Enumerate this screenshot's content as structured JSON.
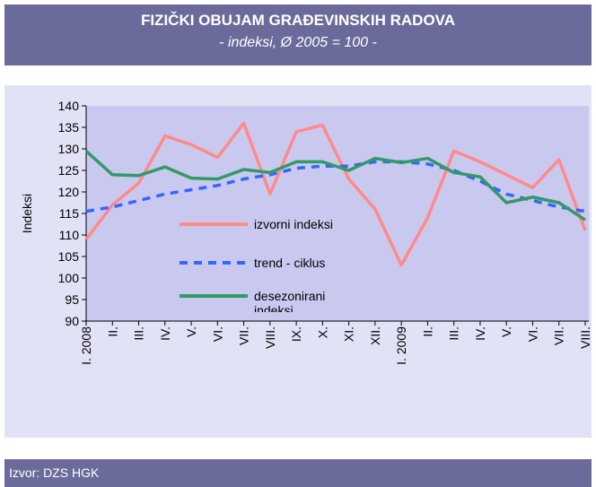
{
  "chart_data": {
    "type": "line",
    "title": "FIZIČKI OBUJAM GRAĐEVINSKIH RADOVA",
    "subtitle": "- indeksi, Ø 2005 = 100 -",
    "y_label": "Indeksi",
    "source": "Izvor: DZS HGK",
    "categories": [
      "I. 2008",
      "II.",
      "III.",
      "IV.",
      "V.",
      "VI.",
      "VII.",
      "VIII.",
      "IX.",
      "X.",
      "XI.",
      "XII.",
      "I. 2009",
      "II.",
      "III.",
      "IV.",
      "V.",
      "VI.",
      "VII.",
      "VIII."
    ],
    "series": [
      {
        "name": "izvorni indeksi",
        "color": "#ff8a8a",
        "dash": false,
        "values": [
          109,
          117,
          122,
          133,
          131,
          128,
          136,
          119.5,
          134,
          135.5,
          123,
          116,
          103,
          114,
          129.5,
          127,
          124,
          121,
          127.5,
          111
        ]
      },
      {
        "name": "trend - ciklus",
        "color": "#3366ff",
        "dash": true,
        "values": [
          115.5,
          116.5,
          118,
          119.5,
          120.5,
          121.5,
          123,
          124,
          125.5,
          126,
          126,
          127,
          127,
          126.5,
          125,
          122.5,
          119.5,
          118,
          116.5,
          115.5
        ]
      },
      {
        "name": "desezonirani indeksi",
        "color": "#339966",
        "dash": false,
        "values": [
          129.5,
          124,
          123.8,
          125.8,
          123.2,
          123,
          125.2,
          124.5,
          127,
          127,
          125,
          127.8,
          126.8,
          127.8,
          124.5,
          123.5,
          117.5,
          118.8,
          117.5,
          113.5
        ]
      }
    ],
    "ylim": [
      90,
      140
    ],
    "yticks": [
      90,
      95,
      100,
      105,
      110,
      115,
      120,
      125,
      130,
      135,
      140
    ],
    "grid": false
  }
}
